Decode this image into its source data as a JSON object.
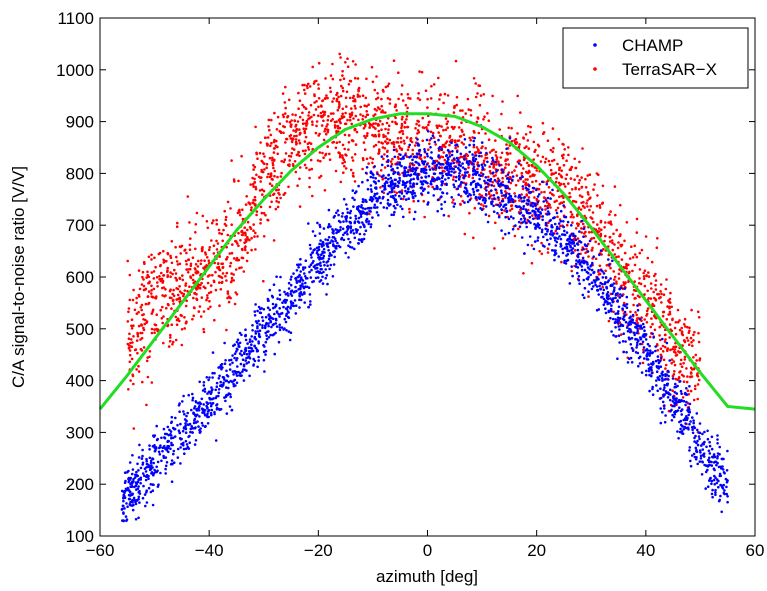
{
  "chart_data": {
    "type": "scatter",
    "xlabel": "azimuth [deg]",
    "ylabel": "C/A signal-to-noise ratio [V/V]",
    "xlim": [
      -60,
      60
    ],
    "ylim": [
      100,
      1100
    ],
    "xticks": [
      -60,
      -40,
      -20,
      0,
      20,
      40,
      60
    ],
    "yticks": [
      100,
      200,
      300,
      400,
      500,
      600,
      700,
      800,
      900,
      1000,
      1100
    ],
    "grid": false,
    "legend": {
      "placement": "top-right",
      "entries": [
        "CHAMP",
        "TerraSAR−X"
      ]
    },
    "tick_labels_x": [
      "−60",
      "−40",
      "−20",
      "0",
      "20",
      "40",
      "60"
    ],
    "tick_labels_y": [
      "100",
      "200",
      "300",
      "400",
      "500",
      "600",
      "700",
      "800",
      "900",
      "1000",
      "1100"
    ],
    "series": [
      {
        "name": "CHAMP",
        "kind": "scatter",
        "color": "#0000ff",
        "point_count": 2600,
        "trend_x": [
          -56,
          -50,
          -45,
          -40,
          -35,
          -30,
          -25,
          -20,
          -15,
          -10,
          -5,
          0,
          5,
          10,
          15,
          20,
          25,
          30,
          35,
          40,
          45,
          50,
          55
        ],
        "trend_y": [
          165,
          240,
          300,
          360,
          430,
          500,
          560,
          630,
          690,
          745,
          785,
          805,
          800,
          785,
          755,
          720,
          670,
          610,
          530,
          460,
          370,
          270,
          200
        ],
        "spread": 30
      },
      {
        "name": "TerraSAR−X",
        "kind": "scatter",
        "color": "#ff0000",
        "point_count": 2500,
        "trend_x": [
          -55,
          -50,
          -45,
          -40,
          -35,
          -30,
          -25,
          -20,
          -15,
          -10,
          -5,
          0,
          5,
          10,
          15,
          20,
          25,
          30,
          35,
          40,
          45,
          50
        ],
        "trend_y": [
          480,
          560,
          580,
          610,
          660,
          780,
          850,
          900,
          900,
          885,
          870,
          855,
          845,
          830,
          800,
          780,
          760,
          700,
          610,
          550,
          470,
          410
        ],
        "spread": 55
      },
      {
        "name": "",
        "kind": "line",
        "color": "#22dd22",
        "x": [
          -60,
          -55,
          -50,
          -45,
          -40,
          -35,
          -30,
          -25,
          -20,
          -15,
          -10,
          -5,
          0,
          5,
          10,
          15,
          20,
          25,
          30,
          35,
          40,
          45,
          50,
          55,
          60
        ],
        "y": [
          345,
          410,
          480,
          550,
          620,
          690,
          750,
          805,
          850,
          885,
          905,
          915,
          915,
          910,
          890,
          860,
          815,
          760,
          695,
          625,
          555,
          485,
          415,
          350,
          345
        ]
      }
    ]
  }
}
